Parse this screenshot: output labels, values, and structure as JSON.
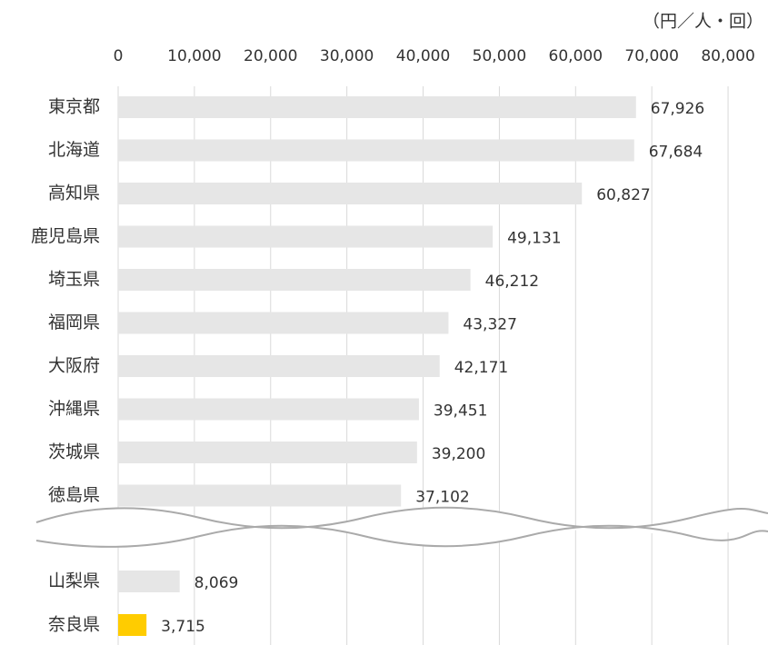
{
  "chart_data": {
    "type": "bar",
    "orientation": "horizontal",
    "unit_label": "（円／人・回）",
    "categories": [
      "東京都",
      "北海道",
      "高知県",
      "鹿児島県",
      "埼玉県",
      "福岡県",
      "大阪府",
      "沖縄県",
      "茨城県",
      "徳島県",
      "山梨県",
      "奈良県"
    ],
    "values": [
      67926,
      67684,
      60827,
      49131,
      46212,
      43327,
      42171,
      39451,
      39200,
      37102,
      8069,
      3715
    ],
    "value_labels": [
      "67,926",
      "67,684",
      "60,827",
      "49,131",
      "46,212",
      "43,327",
      "42,171",
      "39,451",
      "39,200",
      "37,102",
      "8,069",
      "3,715"
    ],
    "colors": [
      "#e6e6e6",
      "#e6e6e6",
      "#e6e6e6",
      "#e6e6e6",
      "#e6e6e6",
      "#e6e6e6",
      "#e6e6e6",
      "#e6e6e6",
      "#e6e6e6",
      "#e6e6e6",
      "#e6e6e6",
      "#ffcc00"
    ],
    "xlim": [
      0,
      85000
    ],
    "xticks": [
      0,
      {
        "value": 10000,
        "label": "10,000"
      },
      {
        "value": 20000,
        "label": "20,000"
      },
      {
        "value": 30000,
        "label": "30,000"
      },
      {
        "value": 40000,
        "label": "40,000"
      },
      {
        "value": 50000,
        "label": "50,000"
      },
      {
        "value": 60000,
        "label": "60,000"
      },
      {
        "value": 70000,
        "label": "70,000"
      },
      {
        "value": 80000,
        "label": "80,000"
      }
    ],
    "grid": true
  }
}
